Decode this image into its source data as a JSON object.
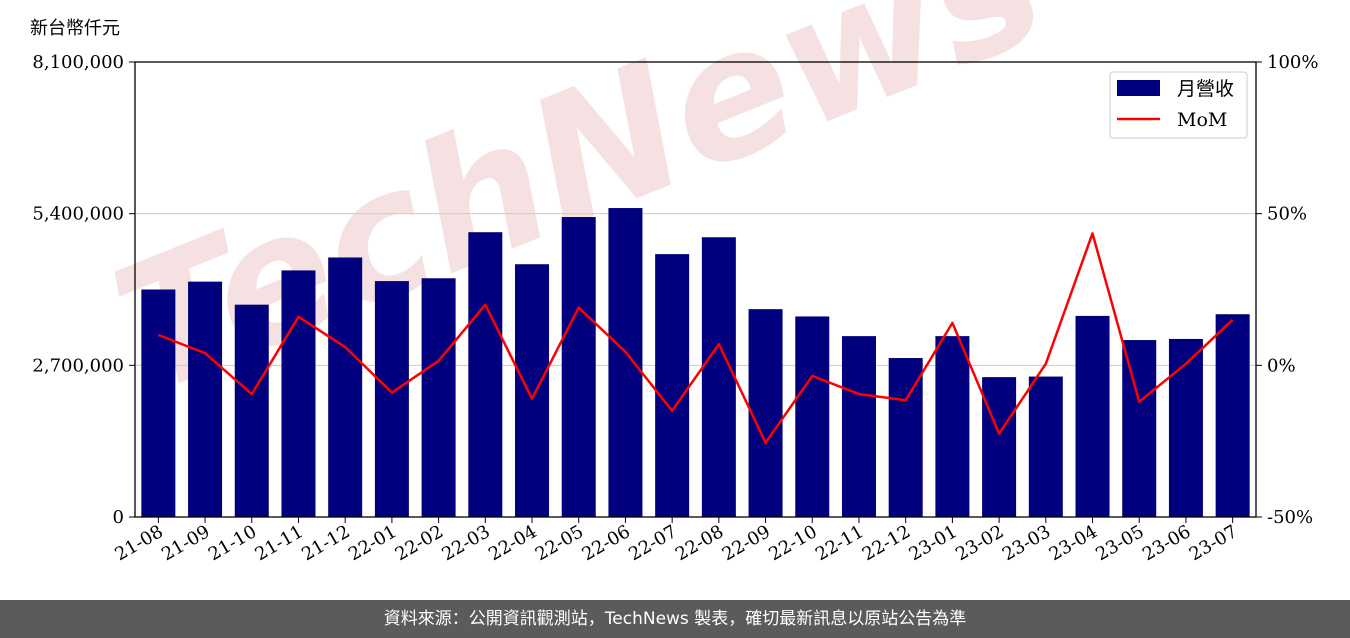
{
  "unit_label": "新台幣仟元",
  "watermark": "TechNews",
  "footer": "資料來源：公開資訊觀測站，TechNews 製表，確切最新訊息以原站公告為準",
  "colors": {
    "bar": "#00007f",
    "line": "#ff0000",
    "grid": "#cccccc",
    "footer_bg": "#5b5b5b"
  },
  "chart_data": {
    "type": "bar",
    "categories": [
      "21-08",
      "21-09",
      "21-10",
      "21-11",
      "21-12",
      "22-01",
      "22-02",
      "22-03",
      "22-04",
      "22-05",
      "22-06",
      "22-07",
      "22-08",
      "22-09",
      "22-10",
      "22-11",
      "22-12",
      "23-01",
      "23-02",
      "23-03",
      "23-04",
      "23-05",
      "23-06",
      "23-07"
    ],
    "series": [
      {
        "name": "月營收",
        "type": "bar",
        "axis": "left",
        "values": [
          4050000,
          4190000,
          3780000,
          4390000,
          4620000,
          4200000,
          4250000,
          5070000,
          4500000,
          5340000,
          5500000,
          4680000,
          4980000,
          3700000,
          3570000,
          3220000,
          2830000,
          3220000,
          2490000,
          2500000,
          3580000,
          3150000,
          3170000,
          3610000
        ]
      },
      {
        "name": "MoM",
        "type": "line",
        "axis": "right",
        "values": [
          10.0,
          4.0,
          -9.5,
          16.0,
          6.0,
          -9.0,
          1.5,
          20.0,
          -11.0,
          19.0,
          4.5,
          -15.0,
          7.0,
          -25.5,
          -3.5,
          -9.5,
          -11.5,
          14.0,
          -22.5,
          0.5,
          43.5,
          -12.0,
          0.5,
          15.0
        ]
      }
    ],
    "y_left": {
      "min": 0,
      "max": 8100000,
      "ticks": [
        0,
        2700000,
        5400000,
        8100000
      ],
      "tick_labels": [
        "0",
        "2,700,000",
        "5,400,000",
        "8,100,000"
      ]
    },
    "y_right": {
      "min": -50,
      "max": 100,
      "ticks": [
        -50,
        0,
        50,
        100
      ],
      "tick_labels": [
        "-50%",
        "0%",
        "50%",
        "100%"
      ]
    },
    "grid": true,
    "legend": "top-right"
  }
}
